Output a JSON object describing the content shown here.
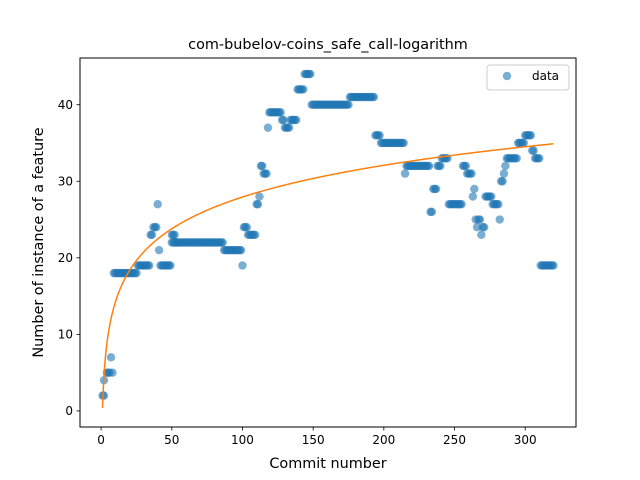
{
  "chart_data": {
    "type": "scatter",
    "title": "com-bubelov-coins_safe_call-logarithm",
    "xlabel": "Commit number",
    "ylabel": "Number of instance of a feature",
    "xlim": [
      -14.95,
      335.95
    ],
    "ylim": [
      -2.1,
      46.1
    ],
    "xticks": [
      0,
      50,
      100,
      150,
      200,
      250,
      300
    ],
    "yticks": [
      0,
      10,
      20,
      30,
      40
    ],
    "xtick_labels": [
      "0",
      "50",
      "100",
      "150",
      "200",
      "250",
      "300"
    ],
    "ytick_labels": [
      "0",
      "10",
      "20",
      "30",
      "40"
    ],
    "legend": {
      "position": "top-right",
      "entries": [
        "data"
      ]
    },
    "grid": false,
    "colors": {
      "data": "#1f77b4",
      "fit": "#ff7f0e"
    },
    "series": [
      {
        "name": "data",
        "kind": "scatter",
        "segments": [
          [
            1,
            2,
            2
          ],
          [
            2,
            2,
            4
          ],
          [
            4,
            6,
            5
          ],
          [
            7,
            7,
            7
          ],
          [
            8,
            8,
            5
          ],
          [
            9,
            25,
            18
          ],
          [
            26,
            28,
            19
          ],
          [
            29,
            34,
            19
          ],
          [
            35,
            36,
            23
          ],
          [
            37,
            39,
            24
          ],
          [
            40,
            40,
            27
          ],
          [
            41,
            41,
            21
          ],
          [
            42,
            49,
            19
          ],
          [
            50,
            52,
            23
          ],
          [
            53,
            53,
            22
          ],
          [
            50,
            54,
            22
          ],
          [
            55,
            86,
            22
          ],
          [
            87,
            99,
            21
          ],
          [
            100,
            100,
            19
          ],
          [
            101,
            103,
            24
          ],
          [
            104,
            109,
            23
          ],
          [
            110,
            111,
            27
          ],
          [
            112,
            112,
            28
          ],
          [
            113,
            114,
            32
          ],
          [
            115,
            117,
            31
          ],
          [
            118,
            118,
            37
          ],
          [
            119,
            127,
            39
          ],
          [
            128,
            129,
            38
          ],
          [
            130,
            133,
            37
          ],
          [
            134,
            138,
            38
          ],
          [
            139,
            143,
            42
          ],
          [
            144,
            148,
            44
          ],
          [
            149,
            175,
            40
          ],
          [
            176,
            193,
            41
          ],
          [
            194,
            197,
            36
          ],
          [
            198,
            214,
            35
          ],
          [
            215,
            215,
            31
          ],
          [
            216,
            232,
            32
          ],
          [
            233,
            234,
            26
          ],
          [
            235,
            237,
            29
          ],
          [
            238,
            240,
            32
          ],
          [
            241,
            245,
            33
          ],
          [
            246,
            255,
            27
          ],
          [
            256,
            258,
            32
          ],
          [
            259,
            262,
            31
          ],
          [
            263,
            263,
            28
          ],
          [
            264,
            264,
            29
          ],
          [
            265,
            265,
            25
          ],
          [
            266,
            266,
            24
          ],
          [
            267,
            268,
            25
          ],
          [
            269,
            269,
            23
          ],
          [
            270,
            271,
            24
          ],
          [
            272,
            276,
            28
          ],
          [
            277,
            281,
            27
          ],
          [
            282,
            282,
            25
          ],
          [
            283,
            284,
            30
          ],
          [
            285,
            285,
            31
          ],
          [
            286,
            286,
            32
          ],
          [
            287,
            294,
            33
          ],
          [
            295,
            299,
            35
          ],
          [
            300,
            304,
            36
          ],
          [
            305,
            306,
            34
          ],
          [
            307,
            310,
            33
          ],
          [
            311,
            320,
            19
          ]
        ]
      },
      {
        "name": "",
        "kind": "line",
        "formula": "y = a + b * ln(x)",
        "a": 0.4,
        "b": 5.98,
        "x_range": [
          1,
          320
        ]
      }
    ]
  }
}
